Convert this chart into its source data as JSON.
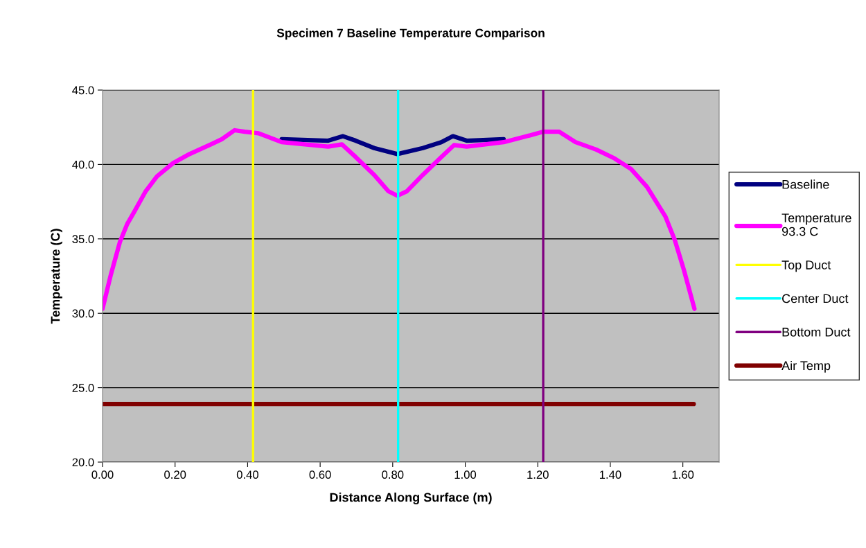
{
  "chart_data": {
    "type": "line",
    "title": "Specimen 7 Baseline Temperature Comparison",
    "xlabel": "Distance Along Surface (m)",
    "ylabel": "Temperature (C)",
    "xlim": [
      0,
      1.7
    ],
    "xticks": [
      {
        "value": 0,
        "label": "0.00"
      },
      {
        "value": 0.2,
        "label": "0.20"
      },
      {
        "value": 0.4,
        "label": "0.40"
      },
      {
        "value": 0.6,
        "label": "0.60"
      },
      {
        "value": 0.8,
        "label": "0.80"
      },
      {
        "value": 1.0,
        "label": "1.00"
      },
      {
        "value": 1.2,
        "label": "1.20"
      },
      {
        "value": 1.4,
        "label": "1.40"
      },
      {
        "value": 1.6,
        "label": "1.60"
      }
    ],
    "ylim": [
      20,
      45
    ],
    "yticks": [
      {
        "value": 20,
        "label": "20.0"
      },
      {
        "value": 25,
        "label": "25.0"
      },
      {
        "value": 30,
        "label": "30.0"
      },
      {
        "value": 35,
        "label": "35.0"
      },
      {
        "value": 40,
        "label": "40.0"
      },
      {
        "value": 45,
        "label": "45.0"
      }
    ],
    "grid": "y",
    "legend": "right",
    "marker": "none",
    "line_style": "solid",
    "series": [
      {
        "name": "Baseline",
        "color": "#000080",
        "x": [
          0.494,
          0.622,
          0.663,
          0.698,
          0.749,
          0.813,
          0.883,
          0.934,
          0.966,
          1.004,
          1.106
        ],
        "values": [
          41.7,
          41.6,
          41.9,
          41.6,
          41.1,
          40.7,
          41.1,
          41.5,
          41.9,
          41.6,
          41.7
        ]
      },
      {
        "name": "Temperature 93.3 C",
        "color": "#ff00ff",
        "x": [
          0,
          0.023,
          0.048,
          0.068,
          0.087,
          0.119,
          0.15,
          0.195,
          0.24,
          0.303,
          0.329,
          0.364,
          0.392,
          0.43,
          0.494,
          0.622,
          0.66,
          0.698,
          0.749,
          0.788,
          0.813,
          0.839,
          0.883,
          0.934,
          0.969,
          1.004,
          1.106,
          1.17,
          1.214,
          1.259,
          1.304,
          1.361,
          1.412,
          1.457,
          1.501,
          1.552,
          1.578,
          1.603,
          1.632
        ],
        "values": [
          30.3,
          32.6,
          34.8,
          36.0,
          36.8,
          38.2,
          39.2,
          40.1,
          40.7,
          41.4,
          41.7,
          42.3,
          42.2,
          42.1,
          41.5,
          41.2,
          41.35,
          40.5,
          39.3,
          38.2,
          37.9,
          38.2,
          39.3,
          40.5,
          41.3,
          41.2,
          41.5,
          41.9,
          42.2,
          42.2,
          41.5,
          41.0,
          40.4,
          39.7,
          38.5,
          36.5,
          34.9,
          32.9,
          30.3
        ]
      },
      {
        "name": "Top Duct",
        "color": "#ffff00",
        "x": [
          0.415,
          0.415
        ],
        "values": [
          20,
          45
        ]
      },
      {
        "name": "Center Duct",
        "color": "#00ffff",
        "x": [
          0.815,
          0.815
        ],
        "values": [
          20,
          45
        ]
      },
      {
        "name": "Bottom Duct",
        "color": "#800080",
        "x": [
          1.215,
          1.215
        ],
        "values": [
          20,
          45
        ]
      },
      {
        "name": "Air Temp",
        "color": "#800000",
        "x": [
          0,
          1.63
        ],
        "values": [
          23.9,
          23.9
        ]
      }
    ]
  }
}
